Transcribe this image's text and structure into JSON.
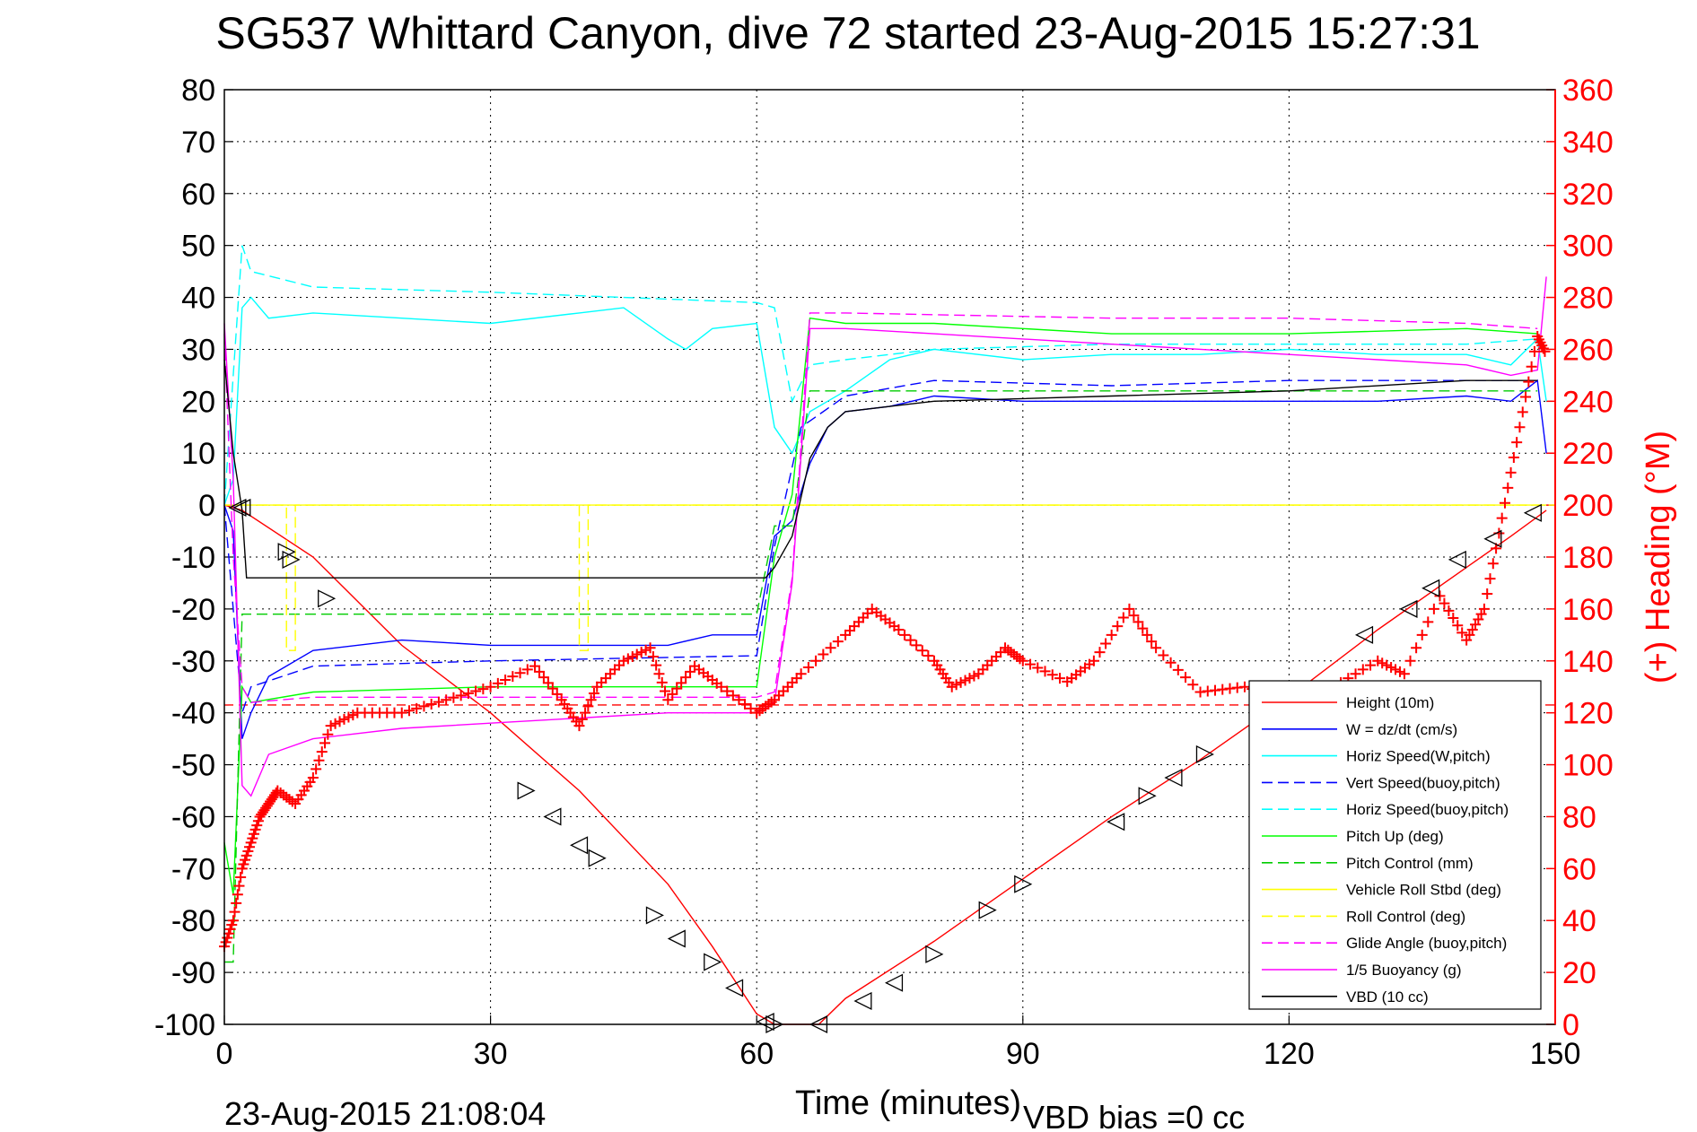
{
  "chart_data": {
    "type": "line",
    "title": "SG537 Whittard Canyon, dive 72 started 23-Aug-2015 15:27:31",
    "xlabel": "Time (minutes)",
    "ylabel_right": "(+) Heading (°M)",
    "footer_left": "23-Aug-2015 21:08:04",
    "footer_right": "VBD bias =0 cc",
    "xlim": [
      0,
      150
    ],
    "ylim_left": [
      -100,
      80
    ],
    "ylim_right": [
      0,
      360
    ],
    "xticks": [
      0,
      30,
      60,
      90,
      120,
      150
    ],
    "yticks_left": [
      80,
      70,
      60,
      50,
      40,
      30,
      20,
      10,
      0,
      -10,
      -20,
      -30,
      -40,
      -50,
      -60,
      -70,
      -80,
      -90,
      -100
    ],
    "yticks_right": [
      360,
      340,
      320,
      300,
      280,
      260,
      240,
      220,
      200,
      180,
      160,
      140,
      120,
      100,
      80,
      60,
      40,
      20,
      0
    ],
    "grid": true,
    "legend_position": "lower-right",
    "colors": {
      "height": "#ff0000",
      "w": "#0000ff",
      "horiz_w": "#00ffff",
      "vert_buoy": "#0000ff",
      "horiz_buoy": "#00ffff",
      "pitch_up": "#00ff00",
      "pitch_control": "#00cc00",
      "roll": "#ffff00",
      "roll_control": "#ffff00",
      "glide_angle": "#ff00ff",
      "buoyancy": "#ff00ff",
      "vbd": "#000000",
      "heading": "#ff0000",
      "heading_axis": "#ff0000"
    },
    "series": [
      {
        "name": "Height (10m)",
        "style": "solid",
        "color": "#ff0000",
        "x": [
          0,
          2,
          10,
          20,
          30,
          40,
          50,
          55,
          60,
          62,
          65,
          67,
          70,
          80,
          90,
          100,
          110,
          120,
          130,
          140,
          145,
          149
        ],
        "y": [
          0,
          -1,
          -10,
          -27,
          -40,
          -55,
          -73,
          -85,
          -98,
          -100,
          -100,
          -100,
          -95,
          -84,
          -72,
          -60,
          -49,
          -37,
          -24,
          -12,
          -6,
          -1
        ]
      },
      {
        "name": "W = dz/dt (cm/s)",
        "style": "solid",
        "color": "#0000ff",
        "x": [
          0,
          1,
          2,
          3,
          5,
          10,
          20,
          30,
          40,
          50,
          55,
          60,
          62,
          64,
          66,
          68,
          70,
          75,
          80,
          90,
          100,
          110,
          120,
          130,
          140,
          145,
          148,
          149
        ],
        "y": [
          0,
          -5,
          -45,
          -40,
          -33,
          -28,
          -26,
          -27,
          -27,
          -27,
          -25,
          -25,
          -6,
          -3,
          8,
          15,
          18,
          19,
          21,
          20,
          20,
          20,
          20,
          20,
          21,
          20,
          24,
          10
        ]
      },
      {
        "name": "Horiz Speed(W,pitch)",
        "style": "solid",
        "color": "#00ffff",
        "x": [
          0,
          1,
          2,
          3,
          5,
          10,
          20,
          30,
          40,
          45,
          50,
          52,
          55,
          60,
          62,
          64,
          66,
          68,
          70,
          75,
          80,
          90,
          100,
          110,
          120,
          130,
          140,
          145,
          148,
          149
        ],
        "y": [
          0,
          5,
          38,
          40,
          36,
          37,
          36,
          35,
          37,
          38,
          32,
          30,
          34,
          35,
          15,
          10,
          18,
          20,
          22,
          28,
          30,
          28,
          29,
          29,
          30,
          29,
          29,
          27,
          32,
          20
        ]
      },
      {
        "name": "Vert Speed(buoy,pitch)",
        "style": "dashed",
        "color": "#0000ff",
        "x": [
          0,
          2,
          3,
          10,
          30,
          60,
          62,
          65,
          70,
          80,
          100,
          120,
          140,
          148
        ],
        "y": [
          0,
          -40,
          -35,
          -31,
          -30,
          -29,
          -8,
          15,
          21,
          24,
          23,
          24,
          24,
          24
        ]
      },
      {
        "name": "Horiz Speed(buoy,pitch)",
        "style": "dashed",
        "color": "#00ffff",
        "x": [
          0,
          2,
          3,
          10,
          30,
          60,
          62,
          64,
          66,
          70,
          80,
          100,
          120,
          140,
          148
        ],
        "y": [
          0,
          50,
          45,
          42,
          41,
          39,
          38,
          20,
          27,
          28,
          30,
          31,
          31,
          31,
          32
        ]
      },
      {
        "name": "Pitch Up (deg)",
        "style": "solid",
        "color": "#00ff00",
        "x": [
          0,
          1,
          2,
          3,
          10,
          30,
          60,
          62,
          64,
          66,
          70,
          80,
          100,
          120,
          140,
          148,
          149
        ],
        "y": [
          -65,
          -75,
          -35,
          -38,
          -36,
          -35,
          -35,
          -10,
          2,
          36,
          35,
          35,
          33,
          33,
          34,
          33,
          30
        ]
      },
      {
        "name": "Pitch Control (mm)",
        "style": "dashed",
        "color": "#00cc00",
        "x": [
          0,
          1,
          2,
          10,
          30,
          60,
          62,
          64,
          66,
          70,
          100,
          120,
          140,
          148
        ],
        "y": [
          -88,
          -88,
          -21,
          -21,
          -21,
          -21,
          -4,
          -4,
          22,
          22,
          22,
          22,
          22,
          22
        ]
      },
      {
        "name": "Vehicle Roll Stbd (deg)",
        "style": "solid",
        "color": "#ffff00",
        "x": [
          0,
          149
        ],
        "y": [
          0,
          0
        ]
      },
      {
        "name": "Roll Control (deg)",
        "style": "dashed",
        "color": "#ffff00",
        "x": [
          0,
          7,
          7,
          8,
          8,
          40,
          40,
          41,
          41,
          150
        ],
        "y": [
          0,
          0,
          -28,
          -28,
          0,
          0,
          -28,
          -28,
          0,
          0
        ]
      },
      {
        "name": "Glide Angle (buoy,pitch)",
        "style": "dashed",
        "color": "#ff00ff",
        "x": [
          0,
          1,
          2,
          3,
          10,
          30,
          60,
          62,
          64,
          66,
          70,
          100,
          120,
          140,
          148
        ],
        "y": [
          33,
          -10,
          -35,
          -38,
          -37,
          -37,
          -37,
          -36,
          -14,
          37,
          37,
          36,
          36,
          35,
          34
        ]
      },
      {
        "name": "1/5 Buoyancy (g)",
        "style": "solid",
        "color": "#ff00ff",
        "x": [
          0,
          1,
          2,
          3,
          5,
          10,
          20,
          30,
          40,
          50,
          60,
          62,
          64,
          66,
          70,
          80,
          90,
          100,
          110,
          120,
          130,
          140,
          145,
          148,
          149
        ],
        "y": [
          35,
          5,
          -54,
          -56,
          -48,
          -45,
          -43,
          -42,
          -41,
          -40,
          -40,
          -38,
          -15,
          34,
          34,
          33,
          32,
          31,
          30,
          29,
          28,
          27,
          25,
          26,
          44
        ]
      },
      {
        "name": "VBD (10 cc)",
        "style": "solid",
        "color": "#000000",
        "x": [
          0,
          1,
          2,
          2.5,
          10,
          30,
          60,
          61,
          62,
          64,
          66,
          68,
          70,
          75,
          80,
          100,
          120,
          140,
          146,
          148
        ],
        "y": [
          28,
          10,
          -1,
          -14,
          -14,
          -14,
          -14,
          -14,
          -12,
          -6,
          9,
          15,
          18,
          19,
          20,
          21,
          22,
          24,
          24,
          24
        ]
      },
      {
        "name": "(+) Heading (°M)",
        "style": "markers",
        "marker": "+",
        "color": "#ff0000",
        "axis": "right",
        "x": [
          0,
          1,
          2,
          3,
          4,
          5,
          6,
          8,
          10,
          12,
          15,
          20,
          25,
          30,
          35,
          38,
          40,
          42,
          45,
          48,
          50,
          53,
          56,
          60,
          62,
          65,
          70,
          73,
          76,
          80,
          82,
          85,
          88,
          90,
          95,
          98,
          102,
          105,
          110,
          115,
          120,
          125,
          130,
          133,
          137,
          140,
          142,
          144,
          146,
          148,
          149
        ],
        "y": [
          30,
          40,
          60,
          70,
          80,
          85,
          90,
          85,
          95,
          115,
          120,
          120,
          125,
          130,
          138,
          125,
          115,
          130,
          140,
          145,
          125,
          138,
          130,
          120,
          125,
          135,
          150,
          160,
          152,
          140,
          130,
          135,
          145,
          140,
          132,
          140,
          160,
          145,
          128,
          130,
          125,
          130,
          140,
          135,
          165,
          148,
          160,
          195,
          230,
          265,
          258
        ]
      }
    ],
    "triangle_markers": [
      {
        "t": 1.5,
        "v": -0.5,
        "dir": "left"
      },
      {
        "t": 2,
        "v": -0.5,
        "dir": "left"
      },
      {
        "t": 7,
        "v": -9,
        "dir": "right"
      },
      {
        "t": 7.5,
        "v": -10.5,
        "dir": "right"
      },
      {
        "t": 11.5,
        "v": -18,
        "dir": "right"
      },
      {
        "t": 34,
        "v": -55,
        "dir": "right"
      },
      {
        "t": 37,
        "v": -60,
        "dir": "left"
      },
      {
        "t": 40,
        "v": -65.5,
        "dir": "left"
      },
      {
        "t": 42,
        "v": -68,
        "dir": "right"
      },
      {
        "t": 48.5,
        "v": -79,
        "dir": "right"
      },
      {
        "t": 51,
        "v": -83.5,
        "dir": "left"
      },
      {
        "t": 55,
        "v": -88,
        "dir": "right"
      },
      {
        "t": 57.5,
        "v": -93,
        "dir": "left"
      },
      {
        "t": 61,
        "v": -99.5,
        "dir": "left"
      },
      {
        "t": 62,
        "v": -100,
        "dir": "right"
      },
      {
        "t": 67,
        "v": -100,
        "dir": "left"
      },
      {
        "t": 72,
        "v": -95.5,
        "dir": "left"
      },
      {
        "t": 75.5,
        "v": -92,
        "dir": "left"
      },
      {
        "t": 80,
        "v": -86.5,
        "dir": "right"
      },
      {
        "t": 86,
        "v": -78,
        "dir": "right"
      },
      {
        "t": 90,
        "v": -73,
        "dir": "right"
      },
      {
        "t": 100.5,
        "v": -61,
        "dir": "left"
      },
      {
        "t": 104,
        "v": -56,
        "dir": "right"
      },
      {
        "t": 107,
        "v": -52.5,
        "dir": "left"
      },
      {
        "t": 110.5,
        "v": -48,
        "dir": "right"
      },
      {
        "t": 128.5,
        "v": -25,
        "dir": "left"
      },
      {
        "t": 133.5,
        "v": -20,
        "dir": "left"
      },
      {
        "t": 136,
        "v": -16,
        "dir": "left"
      },
      {
        "t": 139,
        "v": -10.5,
        "dir": "left"
      },
      {
        "t": 143,
        "v": -6.5,
        "dir": "left"
      },
      {
        "t": 147.5,
        "v": -1.5,
        "dir": "left"
      }
    ],
    "reference_line": {
      "value": -38.5,
      "color": "#ff0000",
      "style": "dashed"
    }
  }
}
